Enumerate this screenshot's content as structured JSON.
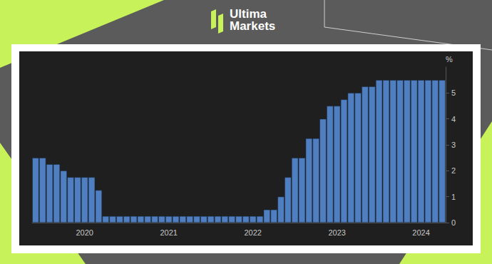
{
  "header": {
    "brand": "Ultima Markets"
  },
  "chart_data": {
    "type": "bar",
    "categories": [
      null,
      null,
      null,
      null,
      null,
      null,
      null,
      "2020",
      null,
      null,
      null,
      null,
      null,
      null,
      null,
      null,
      null,
      null,
      null,
      "2021",
      null,
      null,
      null,
      null,
      null,
      null,
      null,
      null,
      null,
      null,
      null,
      "2022",
      null,
      null,
      null,
      null,
      null,
      null,
      null,
      null,
      null,
      null,
      null,
      "2023",
      null,
      null,
      null,
      null,
      null,
      null,
      null,
      null,
      null,
      null,
      null,
      "2024",
      null,
      null,
      null
    ],
    "values": [
      2.5,
      2.5,
      2.25,
      2.25,
      2.0,
      1.75,
      1.75,
      1.75,
      1.75,
      1.25,
      0.25,
      0.25,
      0.25,
      0.25,
      0.25,
      0.25,
      0.25,
      0.25,
      0.25,
      0.25,
      0.25,
      0.25,
      0.25,
      0.25,
      0.25,
      0.25,
      0.25,
      0.25,
      0.25,
      0.25,
      0.25,
      0.25,
      0.25,
      0.5,
      0.5,
      1.0,
      1.75,
      2.5,
      2.5,
      3.25,
      3.25,
      4.0,
      4.5,
      4.5,
      4.75,
      5.0,
      5.0,
      5.25,
      5.25,
      5.5,
      5.5,
      5.5,
      5.5,
      5.5,
      5.5,
      5.5,
      5.5,
      5.5,
      5.5
    ],
    "color": "#4f7fc0",
    "y_label": "%",
    "ylim": [
      0,
      6
    ],
    "yticks": [
      0,
      1,
      2,
      3,
      4,
      5
    ],
    "grid": false
  }
}
